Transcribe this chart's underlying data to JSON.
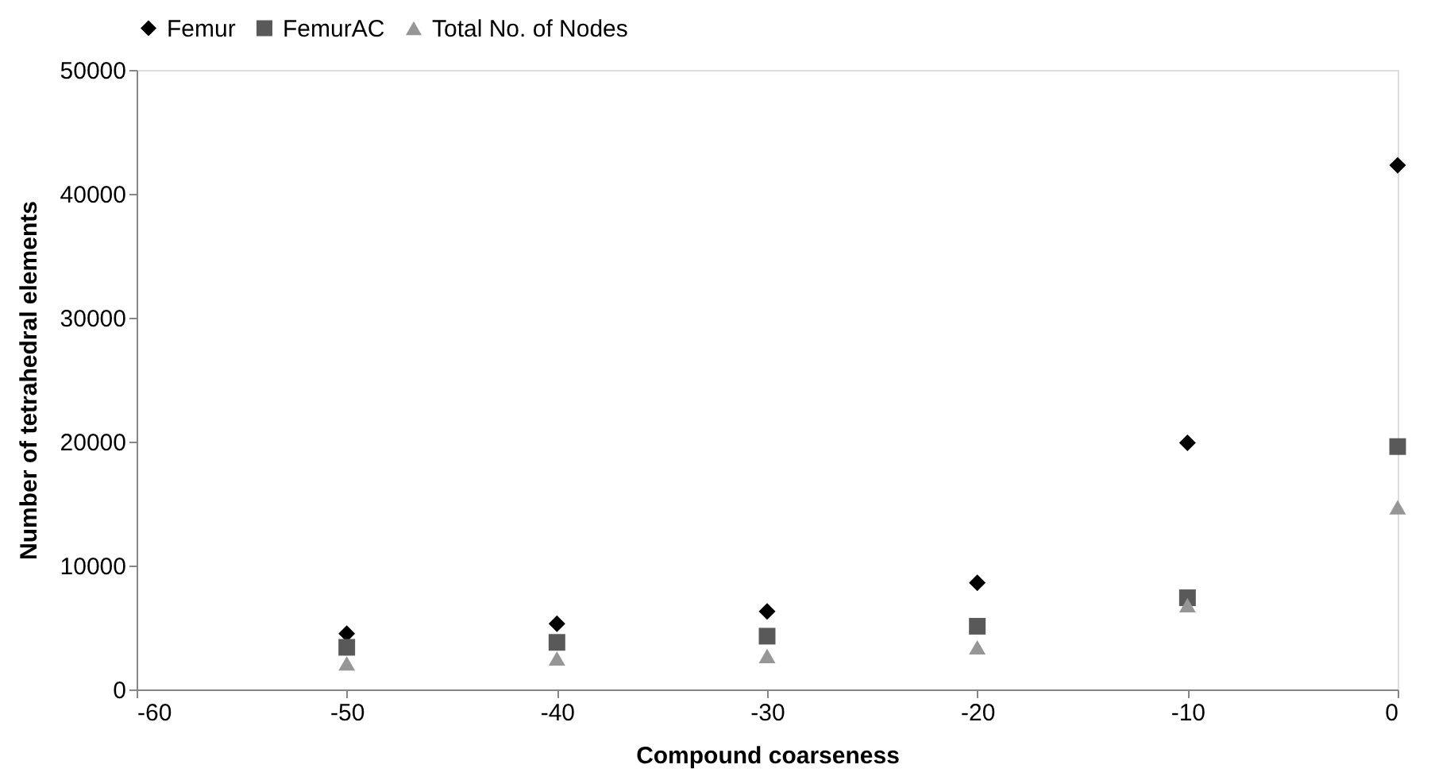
{
  "chart_data": {
    "type": "scatter",
    "xlabel": "Compound coarseness",
    "ylabel": "Number of tetrahedral elements",
    "x": [
      -50,
      -40,
      -30,
      -20,
      -10,
      0
    ],
    "series": [
      {
        "name": "Femur",
        "color": "#000000",
        "marker": "diamond",
        "values": [
          4500,
          5300,
          6300,
          8600,
          19900,
          42300
        ]
      },
      {
        "name": "FemurAC",
        "color": "#595959",
        "marker": "square",
        "values": [
          3400,
          3800,
          4300,
          5100,
          7400,
          19600
        ]
      },
      {
        "name": "Total No. of Nodes",
        "color": "#969696",
        "marker": "triangle",
        "values": [
          2100,
          2500,
          2700,
          3400,
          6800,
          14700
        ]
      }
    ],
    "xlim": [
      -60,
      0
    ],
    "xticks": [
      -60,
      -50,
      -40,
      -30,
      -20,
      -10,
      0
    ],
    "ylim": [
      0,
      50000
    ],
    "yticks": [
      0,
      10000,
      20000,
      30000,
      40000,
      50000
    ],
    "grid": false,
    "legend": "top"
  }
}
